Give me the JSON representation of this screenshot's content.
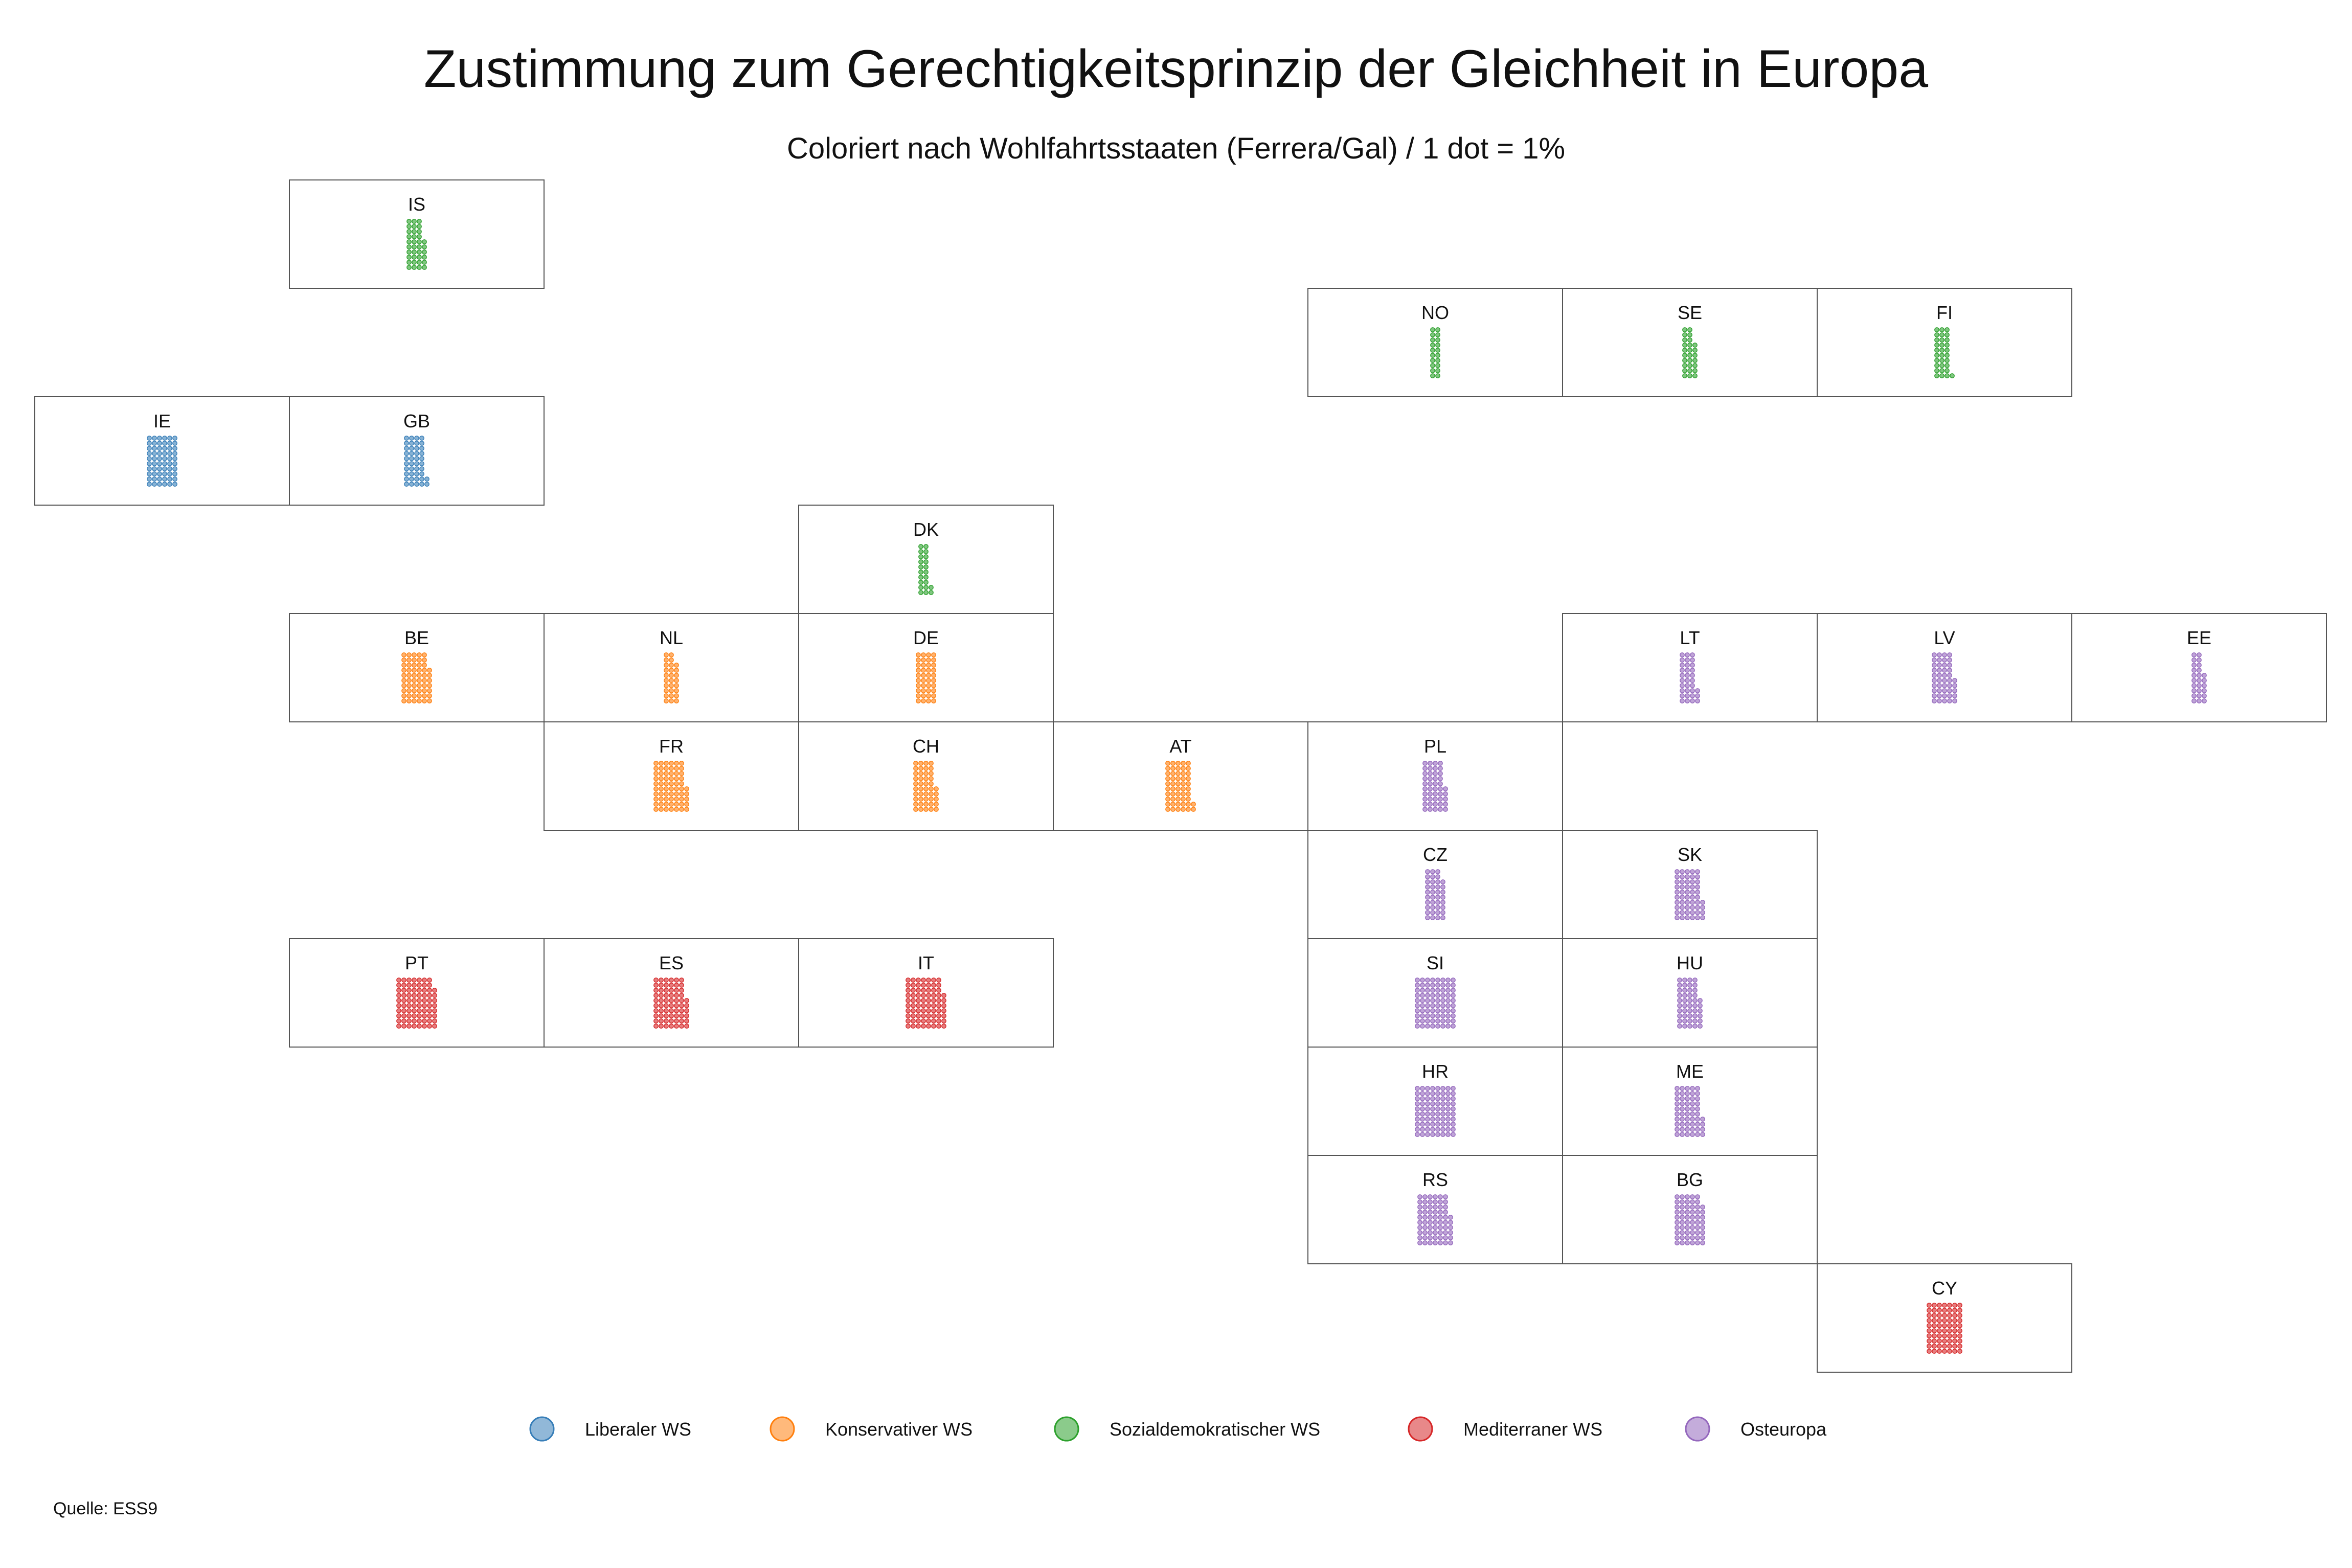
{
  "chart_data": {
    "type": "waffle-tile-map",
    "title": "Zustimmung zum Gerechtigkeitsprinzip der Gleichheit in Europa",
    "subtitle": "Coloriert nach Wohlfahrtsstaaten (Ferrera/Gal) / 1 dot = 1%",
    "source": "Quelle: ESS9",
    "legend": {
      "placement": "bottom",
      "entries": [
        {
          "key": "liberal",
          "label": "Liberaler WS",
          "color": "#377eb8"
        },
        {
          "key": "konservativ",
          "label": "Konservativer WS",
          "color": "#ff7f0e"
        },
        {
          "key": "sozial",
          "label": "Sozialdemokratischer WS",
          "color": "#2ca02c"
        },
        {
          "key": "mediterran",
          "label": "Mediterraner WS",
          "color": "#d62728"
        },
        {
          "key": "ost",
          "label": "Osteuropa",
          "color": "#9467bd"
        }
      ]
    },
    "countries": [
      {
        "code": "IS",
        "group": "sozial",
        "col": 1,
        "row": 0,
        "value": 36
      },
      {
        "code": "NO",
        "group": "sozial",
        "col": 5,
        "row": 1,
        "value": 20
      },
      {
        "code": "SE",
        "group": "sozial",
        "col": 6,
        "row": 1,
        "value": 27
      },
      {
        "code": "FI",
        "group": "sozial",
        "col": 7,
        "row": 1,
        "value": 31
      },
      {
        "code": "IE",
        "group": "liberal",
        "col": 0,
        "row": 2,
        "value": 60
      },
      {
        "code": "GB",
        "group": "liberal",
        "col": 1,
        "row": 2,
        "value": 42
      },
      {
        "code": "DK",
        "group": "sozial",
        "col": 3,
        "row": 3,
        "value": 22
      },
      {
        "code": "BE",
        "group": "konservativ",
        "col": 1,
        "row": 4,
        "value": 57
      },
      {
        "code": "NL",
        "group": "konservativ",
        "col": 2,
        "row": 4,
        "value": 28
      },
      {
        "code": "DE",
        "group": "konservativ",
        "col": 3,
        "row": 4,
        "value": 40
      },
      {
        "code": "LT",
        "group": "ost",
        "col": 6,
        "row": 4,
        "value": 33
      },
      {
        "code": "LV",
        "group": "ost",
        "col": 7,
        "row": 4,
        "value": 45
      },
      {
        "code": "EE",
        "group": "ost",
        "col": 8,
        "row": 4,
        "value": 26
      },
      {
        "code": "FR",
        "group": "konservativ",
        "col": 2,
        "row": 5,
        "value": 65
      },
      {
        "code": "CH",
        "group": "konservativ",
        "col": 3,
        "row": 5,
        "value": 45
      },
      {
        "code": "AT",
        "group": "konservativ",
        "col": 4,
        "row": 5,
        "value": 52
      },
      {
        "code": "PL",
        "group": "ost",
        "col": 5,
        "row": 5,
        "value": 45
      },
      {
        "code": "CZ",
        "group": "ost",
        "col": 5,
        "row": 6,
        "value": 38
      },
      {
        "code": "SK",
        "group": "ost",
        "col": 6,
        "row": 6,
        "value": 54
      },
      {
        "code": "PT",
        "group": "mediterran",
        "col": 1,
        "row": 7,
        "value": 78
      },
      {
        "code": "ES",
        "group": "mediterran",
        "col": 2,
        "row": 7,
        "value": 66
      },
      {
        "code": "IT",
        "group": "mediterran",
        "col": 3,
        "row": 7,
        "value": 77
      },
      {
        "code": "SI",
        "group": "ost",
        "col": 5,
        "row": 7,
        "value": 80
      },
      {
        "code": "HU",
        "group": "ost",
        "col": 6,
        "row": 7,
        "value": 46
      },
      {
        "code": "HR",
        "group": "ost",
        "col": 5,
        "row": 8,
        "value": 80
      },
      {
        "code": "ME",
        "group": "ost",
        "col": 6,
        "row": 8,
        "value": 54
      },
      {
        "code": "RS",
        "group": "ost",
        "col": 5,
        "row": 9,
        "value": 66
      },
      {
        "code": "BG",
        "group": "ost",
        "col": 6,
        "row": 9,
        "value": 58
      },
      {
        "code": "CY",
        "group": "mediterran",
        "col": 7,
        "row": 10,
        "value": 70
      }
    ]
  }
}
